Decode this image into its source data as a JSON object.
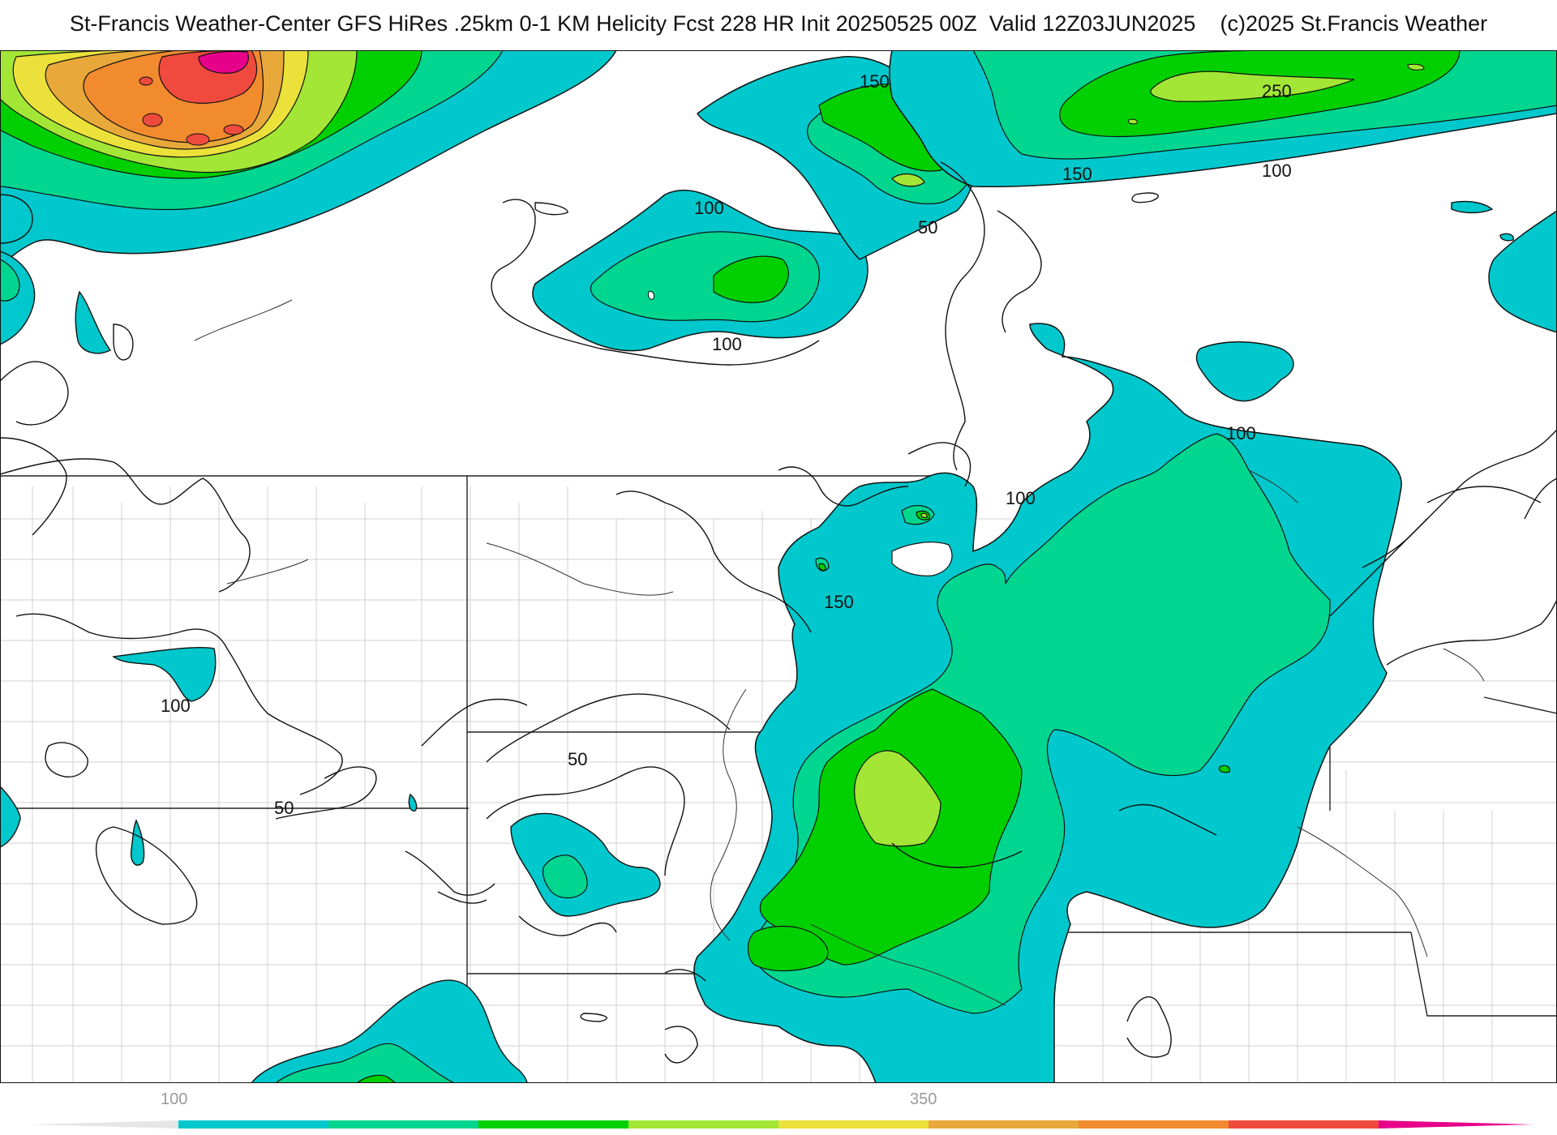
{
  "title": "St-Francis Weather-Center GFS HiRes .25km 0-1 KM Helicity Fcst 228 HR Init 20250525 00Z  Valid 12Z03JUN2025    (c)2025 St.Francis Weather",
  "colors": {
    "c100": "#00c8cc",
    "c150": "#00d68f",
    "c200": "#00d000",
    "c250": "#a3e635",
    "c300": "#ebe13a",
    "c350": "#e8a83a",
    "c400": "#f28a2e",
    "c450": "#f04a3e",
    "c500": "#e6008a",
    "outline": "#111111",
    "county": "#c8c8c8"
  },
  "contour_labels": {
    "l150_top": "150",
    "l250": "250",
    "l100_nw": "100",
    "l150_n": "150",
    "l100_ne": "100",
    "l50_n": "50",
    "l100_mid": "100",
    "l100_lakes": "100",
    "l100_center": "100",
    "l150_center": "150",
    "l100_west": "100",
    "l50_west": "50",
    "l50_center": "50"
  },
  "colorbar": {
    "ticks": [
      "100",
      "350"
    ],
    "colors": [
      "#00c8cc",
      "#00d68f",
      "#00d000",
      "#a3e635",
      "#ebe13a",
      "#e8a83a",
      "#f28a2e",
      "#f04a3e",
      "#e6008a"
    ]
  }
}
